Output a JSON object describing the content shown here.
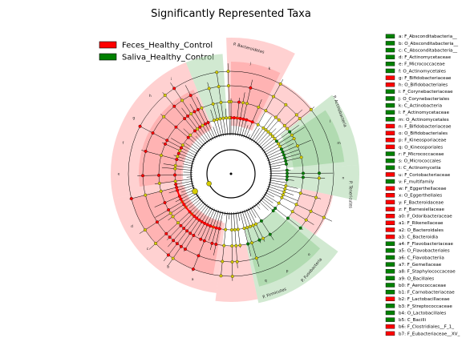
{
  "chart_data": {
    "type": "cladogram",
    "title": "Significantly Represented Taxa",
    "colors": {
      "feces": "#ff0000",
      "saliva": "#008000",
      "node_neutral": "#d4cc00",
      "feces_fill": "#ff9a9a",
      "saliva_fill": "#98cf98"
    },
    "legend": [
      {
        "name": "Feces_Healthy_Control",
        "group": "feces"
      },
      {
        "name": "Saliva_Healthy_Control",
        "group": "saliva"
      }
    ],
    "ring_labels": [
      {
        "text": "P. Bacteroidetes",
        "group": "feces"
      },
      {
        "text": "P. Actinobacteria",
        "group": "saliva"
      },
      {
        "text": "P. Tenericutes",
        "group": "feces"
      },
      {
        "text": "P. Firmicutes",
        "group": "feces"
      },
      {
        "text": "P. Fusobacteria",
        "group": "saliva"
      }
    ],
    "taxa_key": [
      {
        "code": "a",
        "name": "F_Absconditabacteria__",
        "group": "saliva"
      },
      {
        "code": "b",
        "name": "O_Absconditabacteria__",
        "group": "saliva"
      },
      {
        "code": "c",
        "name": "C_Absconditabacteria__",
        "group": "saliva"
      },
      {
        "code": "d",
        "name": "F_Actinomycetaceae",
        "group": "saliva"
      },
      {
        "code": "e",
        "name": "F_Micrococcaceae",
        "group": "saliva"
      },
      {
        "code": "f",
        "name": "O_Actinomycetales",
        "group": "saliva"
      },
      {
        "code": "g",
        "name": "F_Bifidobacteriaceae",
        "group": "feces"
      },
      {
        "code": "h",
        "name": "O_Bifidobacteriales",
        "group": "feces"
      },
      {
        "code": "i",
        "name": "F_Corynebacteriaceae",
        "group": "saliva"
      },
      {
        "code": "j",
        "name": "O_Corynebacteriales",
        "group": "saliva"
      },
      {
        "code": "k",
        "name": "C_Actinobacteria",
        "group": "saliva"
      },
      {
        "code": "l",
        "name": "F_Actinomycetaceae",
        "group": "saliva"
      },
      {
        "code": "m",
        "name": "O_Actinomycetales",
        "group": "saliva"
      },
      {
        "code": "n",
        "name": "F_Bifidobacteriaceae",
        "group": "feces"
      },
      {
        "code": "o",
        "name": "O_Bifidobacteriales",
        "group": "feces"
      },
      {
        "code": "p",
        "name": "F_Kineosporiaceae",
        "group": "feces"
      },
      {
        "code": "q",
        "name": "O_Kineosporiales",
        "group": "feces"
      },
      {
        "code": "r",
        "name": "F_Micrococcaceae",
        "group": "saliva"
      },
      {
        "code": "s",
        "name": "O_Micrococcales",
        "group": "saliva"
      },
      {
        "code": "t",
        "name": "C_Actinomycetia",
        "group": "saliva"
      },
      {
        "code": "u",
        "name": "F_Coriobacteriaceae",
        "group": "feces"
      },
      {
        "code": "v",
        "name": "F_multifamily",
        "group": "saliva"
      },
      {
        "code": "w",
        "name": "F_Eggerthellaceae",
        "group": "feces"
      },
      {
        "code": "x",
        "name": "O_Eggerthellales",
        "group": "feces"
      },
      {
        "code": "y",
        "name": "F_Bacteroidaceae",
        "group": "feces"
      },
      {
        "code": "z",
        "name": "F_Barnesiellaceae",
        "group": "feces"
      },
      {
        "code": "a0",
        "name": "F_Odoribacteraceae",
        "group": "feces"
      },
      {
        "code": "a1",
        "name": "F_Rikenellaceae",
        "group": "feces"
      },
      {
        "code": "a2",
        "name": "O_Bacteroidales",
        "group": "feces"
      },
      {
        "code": "a3",
        "name": "C_Bacteroidia",
        "group": "feces"
      },
      {
        "code": "a4",
        "name": "F_Flavobacteriaceae",
        "group": "saliva"
      },
      {
        "code": "a5",
        "name": "O_Flavobacteriales",
        "group": "saliva"
      },
      {
        "code": "a6",
        "name": "C_Flavobacteriia",
        "group": "saliva"
      },
      {
        "code": "a7",
        "name": "F_Gemellaceae",
        "group": "saliva"
      },
      {
        "code": "a8",
        "name": "F_Staphylococcaceae",
        "group": "saliva"
      },
      {
        "code": "a9",
        "name": "O_Bacillales",
        "group": "saliva"
      },
      {
        "code": "b0",
        "name": "F_Aerococcaceae",
        "group": "saliva"
      },
      {
        "code": "b1",
        "name": "F_Carnobacteriaceae",
        "group": "saliva"
      },
      {
        "code": "b2",
        "name": "F_Lactobacillaceae",
        "group": "feces"
      },
      {
        "code": "b3",
        "name": "F_Streptococcaceae",
        "group": "saliva"
      },
      {
        "code": "b4",
        "name": "O_Lactobacillales",
        "group": "saliva"
      },
      {
        "code": "b5",
        "name": "C_Bacilli",
        "group": "saliva"
      },
      {
        "code": "b6",
        "name": "F_Clostridiales__F_1_",
        "group": "feces"
      },
      {
        "code": "b7",
        "name": "F_Eubacteriaceae__XV_",
        "group": "feces"
      }
    ]
  }
}
